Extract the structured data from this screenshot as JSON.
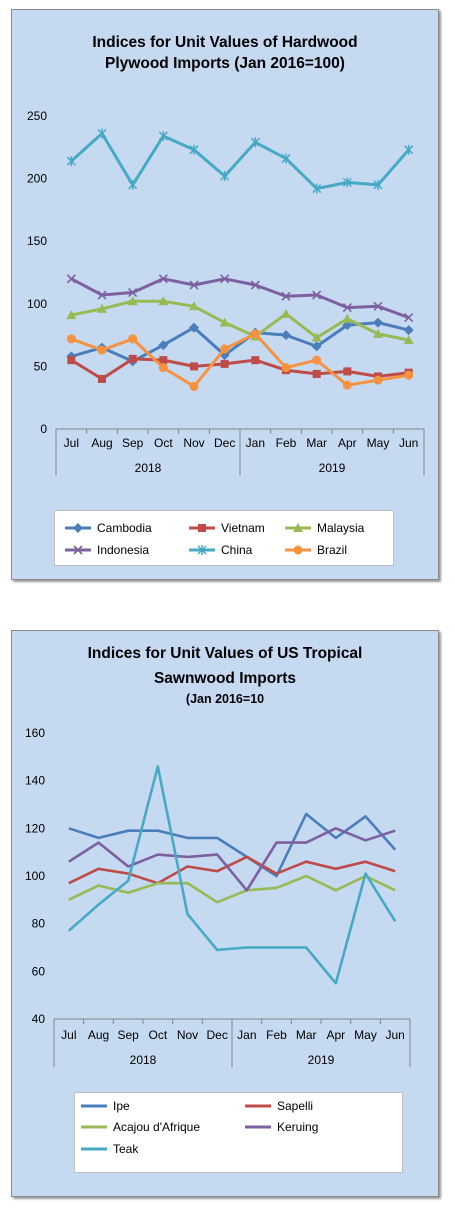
{
  "chart_data": [
    {
      "type": "line",
      "title": "Indices for Unit Values of Hardwood Plywood Imports (Jan 2016=100)",
      "title_lines": [
        "Indices for Unit Values of Hardwood",
        "Plywood Imports (Jan 2016=100)"
      ],
      "categories": [
        "Jul",
        "Aug",
        "Sep",
        "Oct",
        "Nov",
        "Dec",
        "Jan",
        "Feb",
        "Mar",
        "Apr",
        "May",
        "Jun"
      ],
      "year_labels": [
        "2018",
        "2019"
      ],
      "ylim": [
        0,
        250
      ],
      "yticks": [
        "0",
        "50",
        "100",
        "150",
        "200",
        "250"
      ],
      "grid": false,
      "legend_position": "bottom",
      "series": [
        {
          "name": "Cambodia",
          "color": "#4a7ebb",
          "marker": "diamond",
          "values": [
            58,
            65,
            54,
            67,
            81,
            59,
            77,
            75,
            66,
            83,
            85,
            79
          ]
        },
        {
          "name": "Vietnam",
          "color": "#be4b48",
          "marker": "square",
          "values": [
            55,
            40,
            56,
            55,
            50,
            52,
            55,
            47,
            44,
            46,
            42,
            45
          ]
        },
        {
          "name": "Malaysia",
          "color": "#98b954",
          "marker": "triangle",
          "values": [
            91,
            96,
            102,
            102,
            98,
            85,
            74,
            92,
            73,
            88,
            76,
            71
          ]
        },
        {
          "name": "Indonesia",
          "color": "#7d60a0",
          "marker": "x",
          "values": [
            120,
            107,
            109,
            120,
            115,
            120,
            115,
            106,
            107,
            97,
            98,
            89
          ]
        },
        {
          "name": "China",
          "color": "#46aac5",
          "marker": "star",
          "values": [
            214,
            236,
            195,
            234,
            223,
            202,
            229,
            216,
            192,
            197,
            195,
            223
          ]
        },
        {
          "name": "Brazil",
          "color": "#f69240",
          "marker": "circle",
          "values": [
            72,
            63,
            72,
            49,
            34,
            64,
            76,
            49,
            55,
            35,
            39,
            43
          ]
        }
      ]
    },
    {
      "type": "line",
      "title": "Indices for Unit Values of US Tropical Sawnwood Imports",
      "title_lines": [
        "Indices for Unit Values of US Tropical",
        "Sawnwood Imports"
      ],
      "subtitle": "(Jan 2016=10",
      "categories": [
        "Jul",
        "Aug",
        "Sep",
        "Oct",
        "Nov",
        "Dec",
        "Jan",
        "Feb",
        "Mar",
        "Apr",
        "May",
        "Jun"
      ],
      "year_labels": [
        "2018",
        "2019"
      ],
      "ylim": [
        40,
        160
      ],
      "yticks": [
        "40",
        "60",
        "80",
        "100",
        "120",
        "140",
        "160"
      ],
      "grid": false,
      "legend_position": "bottom",
      "series": [
        {
          "name": "Ipe",
          "color": "#4a7ebb",
          "values": [
            120,
            116,
            119,
            119,
            116,
            116,
            108,
            100,
            126,
            116,
            125,
            111
          ]
        },
        {
          "name": "Sapelli",
          "color": "#be4b48",
          "values": [
            97,
            103,
            101,
            97,
            104,
            102,
            108,
            101,
            106,
            103,
            106,
            102
          ]
        },
        {
          "name": "Acajou d'Afrique",
          "color": "#98b954",
          "values": [
            90,
            96,
            93,
            97,
            97,
            89,
            94,
            95,
            100,
            94,
            100,
            94
          ]
        },
        {
          "name": "Keruing",
          "color": "#7d60a0",
          "values": [
            106,
            114,
            104,
            109,
            108,
            109,
            94,
            114,
            114,
            120,
            115,
            119
          ]
        },
        {
          "name": "Teak",
          "color": "#46aac5",
          "values": [
            77,
            88,
            98,
            146,
            84,
            69,
            70,
            70,
            70,
            55,
            101,
            81
          ]
        }
      ]
    }
  ]
}
